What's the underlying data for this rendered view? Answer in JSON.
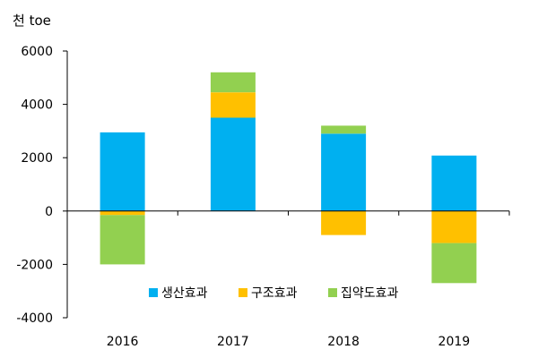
{
  "chart_data": {
    "type": "bar",
    "stacked": true,
    "ylabel": "천 toe",
    "categories": [
      "2016",
      "2017",
      "2018",
      "2019"
    ],
    "ylim": [
      -4000,
      6000
    ],
    "yticks": [
      6000,
      4000,
      2000,
      0,
      -2000,
      -4000
    ],
    "legend_position": "bottom-center",
    "grid": false,
    "series": [
      {
        "name": "생산효과",
        "color": "#00B0F0",
        "values": [
          2950,
          3500,
          2900,
          2080
        ]
      },
      {
        "name": "구조효과",
        "color": "#FFC000",
        "values": [
          -150,
          950,
          -900,
          -1200
        ]
      },
      {
        "name": "집약도효과",
        "color": "#92D050",
        "values": [
          -1850,
          750,
          300,
          -1500
        ]
      }
    ]
  }
}
